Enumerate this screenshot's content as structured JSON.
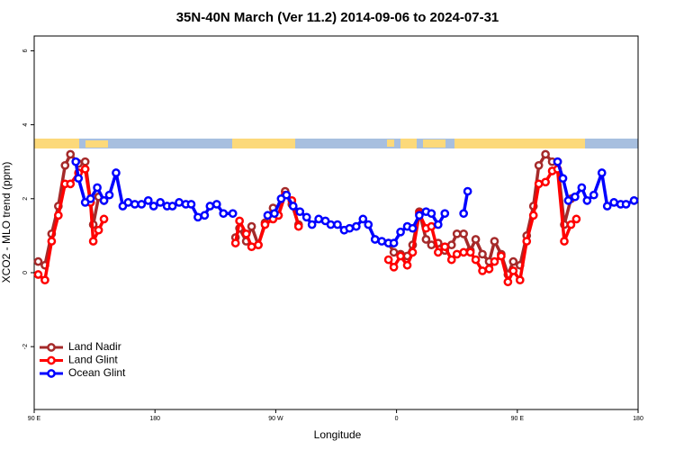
{
  "chart_data": {
    "type": "line",
    "title": "35N-40N March (Ver 11.2)   2014-09-06 to 2024-07-31",
    "x_label": "Longitude",
    "y_label": "XCO2 - MLO trend (ppm)",
    "xlim": [
      90,
      540
    ],
    "ylim": [
      -3.7,
      6.4
    ],
    "xticks": [
      {
        "value": 90,
        "label": "90 E"
      },
      {
        "value": 180,
        "label": "180"
      },
      {
        "value": 270,
        "label": "90 W"
      },
      {
        "value": 360,
        "label": "0"
      },
      {
        "value": 450,
        "label": "90 E"
      },
      {
        "value": 540,
        "label": "180"
      }
    ],
    "yticks": [
      -2,
      0,
      2,
      4,
      6
    ],
    "legend": "bottom-left",
    "series": [
      {
        "name": "Land Nadir",
        "color": "#a52a2a",
        "x": [
          93,
          98,
          103,
          108,
          113,
          117,
          123,
          128,
          132,
          134,
          138,
          142,
          null,
          240,
          243,
          248,
          252,
          257,
          262,
          268,
          272,
          277,
          282,
          287,
          null,
          354,
          358,
          363,
          368,
          372,
          377,
          382,
          386,
          391,
          396,
          401,
          405,
          410,
          415,
          419,
          424,
          429,
          433,
          438,
          443,
          447,
          452,
          457,
          462,
          466,
          471,
          476,
          480,
          485,
          490
        ],
        "values": [
          0.3,
          0.2,
          1.05,
          1.8,
          2.9,
          3.2,
          2.95,
          3.0,
          1.9,
          1.3,
          2.05,
          1.95,
          null,
          0.95,
          1.2,
          0.85,
          1.25,
          0.75,
          1.35,
          1.75,
          1.55,
          2.2,
          1.85,
          1.3,
          null,
          0.8,
          0.55,
          0.5,
          0.45,
          0.75,
          1.65,
          0.9,
          0.75,
          0.8,
          0.6,
          0.75,
          1.05,
          1.05,
          0.6,
          0.9,
          0.5,
          0.3,
          0.85,
          0.5,
          -0.05,
          0.3,
          0.2,
          1.0,
          1.8,
          2.9,
          3.2,
          3.0,
          3.0,
          1.3,
          2.0
        ]
      },
      {
        "name": "Land Glint",
        "color": "#ff0000",
        "x": [
          93,
          98,
          103,
          108,
          113,
          117,
          123,
          128,
          132,
          134,
          138,
          142,
          null,
          240,
          243,
          248,
          252,
          257,
          262,
          268,
          272,
          277,
          282,
          287,
          null,
          354,
          358,
          363,
          368,
          372,
          377,
          382,
          386,
          391,
          396,
          401,
          405,
          410,
          415,
          419,
          424,
          429,
          433,
          438,
          443,
          447,
          452,
          457,
          462,
          466,
          471,
          476,
          480,
          485,
          490,
          494
        ],
        "values": [
          -0.05,
          -0.2,
          0.85,
          1.55,
          2.4,
          2.4,
          2.7,
          2.8,
          1.9,
          0.85,
          1.15,
          1.45,
          null,
          0.8,
          1.4,
          1.05,
          0.7,
          0.75,
          1.3,
          1.45,
          1.55,
          2.1,
          1.95,
          1.25,
          null,
          0.35,
          0.15,
          0.45,
          0.2,
          0.55,
          1.6,
          1.2,
          1.25,
          0.55,
          0.7,
          0.35,
          0.5,
          0.55,
          0.55,
          0.35,
          0.05,
          0.1,
          0.3,
          0.45,
          -0.25,
          0.05,
          -0.2,
          0.85,
          1.55,
          2.4,
          2.45,
          2.75,
          2.8,
          0.85,
          1.3,
          1.45
        ]
      },
      {
        "name": "Ocean Glint",
        "color": "#0000ff",
        "x": [
          121,
          123,
          128,
          132,
          137,
          142,
          146,
          151,
          156,
          160,
          165,
          170,
          175,
          179,
          184,
          189,
          193,
          198,
          203,
          207,
          212,
          217,
          221,
          226,
          231,
          238,
          null,
          264,
          269,
          274,
          278,
          283,
          288,
          293,
          297,
          302,
          307,
          311,
          316,
          321,
          325,
          330,
          335,
          339,
          344,
          349,
          354,
          358,
          363,
          368,
          372,
          377,
          382,
          386,
          391,
          396,
          null,
          410,
          413,
          null,
          480,
          484,
          488,
          493,
          498,
          502,
          507,
          513,
          517,
          522,
          527,
          531,
          537
        ],
        "values": [
          3.0,
          2.55,
          1.9,
          2.0,
          2.3,
          1.95,
          2.1,
          2.7,
          1.8,
          1.9,
          1.85,
          1.85,
          1.95,
          1.8,
          1.9,
          1.8,
          1.8,
          1.9,
          1.85,
          1.85,
          1.5,
          1.55,
          1.8,
          1.85,
          1.6,
          1.6,
          null,
          1.55,
          1.6,
          2.0,
          2.1,
          1.8,
          1.65,
          1.5,
          1.3,
          1.45,
          1.4,
          1.3,
          1.3,
          1.15,
          1.2,
          1.25,
          1.45,
          1.3,
          0.9,
          0.85,
          0.8,
          0.8,
          1.1,
          1.25,
          1.2,
          1.55,
          1.65,
          1.6,
          1.3,
          1.6,
          null,
          1.6,
          2.2,
          null,
          3.0,
          2.55,
          1.95,
          2.05,
          2.3,
          1.95,
          2.1,
          2.7,
          1.8,
          1.9,
          1.85,
          1.85,
          1.95
        ]
      }
    ]
  }
}
